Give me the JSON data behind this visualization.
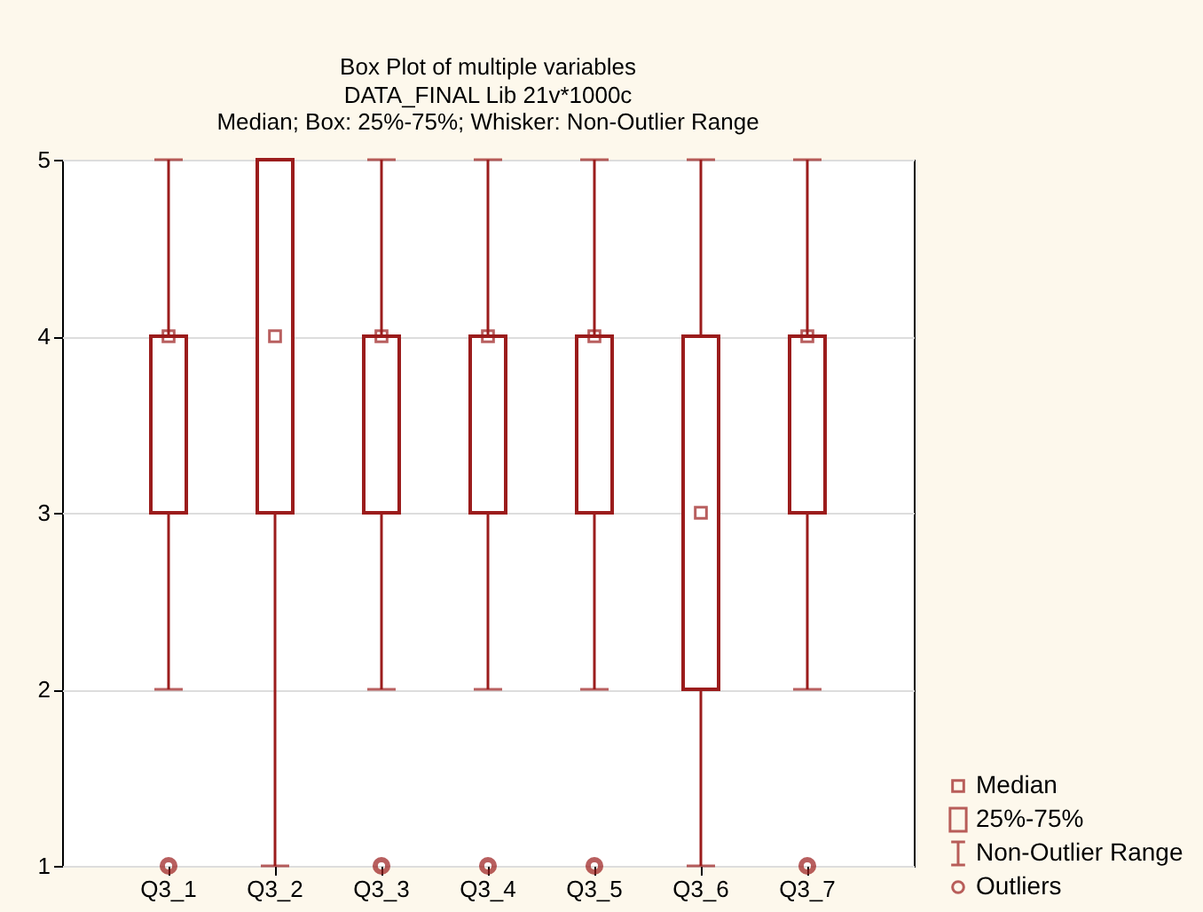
{
  "chart_data": {
    "type": "box",
    "title": "Box Plot of multiple variables",
    "subtitle": "DATA_FINAL Lib 21v*1000c\nMedian; Box: 25%-75%; Whisker: Non-Outlier Range",
    "categories": [
      "Q3_1",
      "Q3_2",
      "Q3_3",
      "Q3_4",
      "Q3_5",
      "Q3_6",
      "Q3_7"
    ],
    "series": [
      {
        "color": "#9b1c1c",
        "boxes": [
          {
            "low": 2,
            "q1": 3,
            "median": 4,
            "q3": 4,
            "high": 5,
            "outliers": [
              1
            ]
          },
          {
            "low": 1,
            "q1": 3,
            "median": 4,
            "q3": 5,
            "high": 5
          },
          {
            "low": 2,
            "q1": 3,
            "median": 4,
            "q3": 4,
            "high": 5,
            "outliers": [
              1
            ]
          },
          {
            "low": 2,
            "q1": 3,
            "median": 4,
            "q3": 4,
            "high": 5,
            "outliers": [
              1
            ]
          },
          {
            "low": 2,
            "q1": 3,
            "median": 4,
            "q3": 4,
            "high": 5,
            "outliers": [
              1
            ]
          },
          {
            "low": 1,
            "q1": 2,
            "median": 3,
            "q3": 4,
            "high": 5
          },
          {
            "low": 2,
            "q1": 3,
            "median": 4,
            "q3": 4,
            "high": 5,
            "outliers": [
              1
            ]
          }
        ]
      }
    ],
    "annotations": [
      "Median",
      "25%-75%",
      "Non-Outlier Range",
      "Outliers"
    ],
    "ylim": [
      1,
      5
    ],
    "yticks": [
      1,
      2,
      3,
      4,
      5
    ],
    "grid": "y"
  }
}
